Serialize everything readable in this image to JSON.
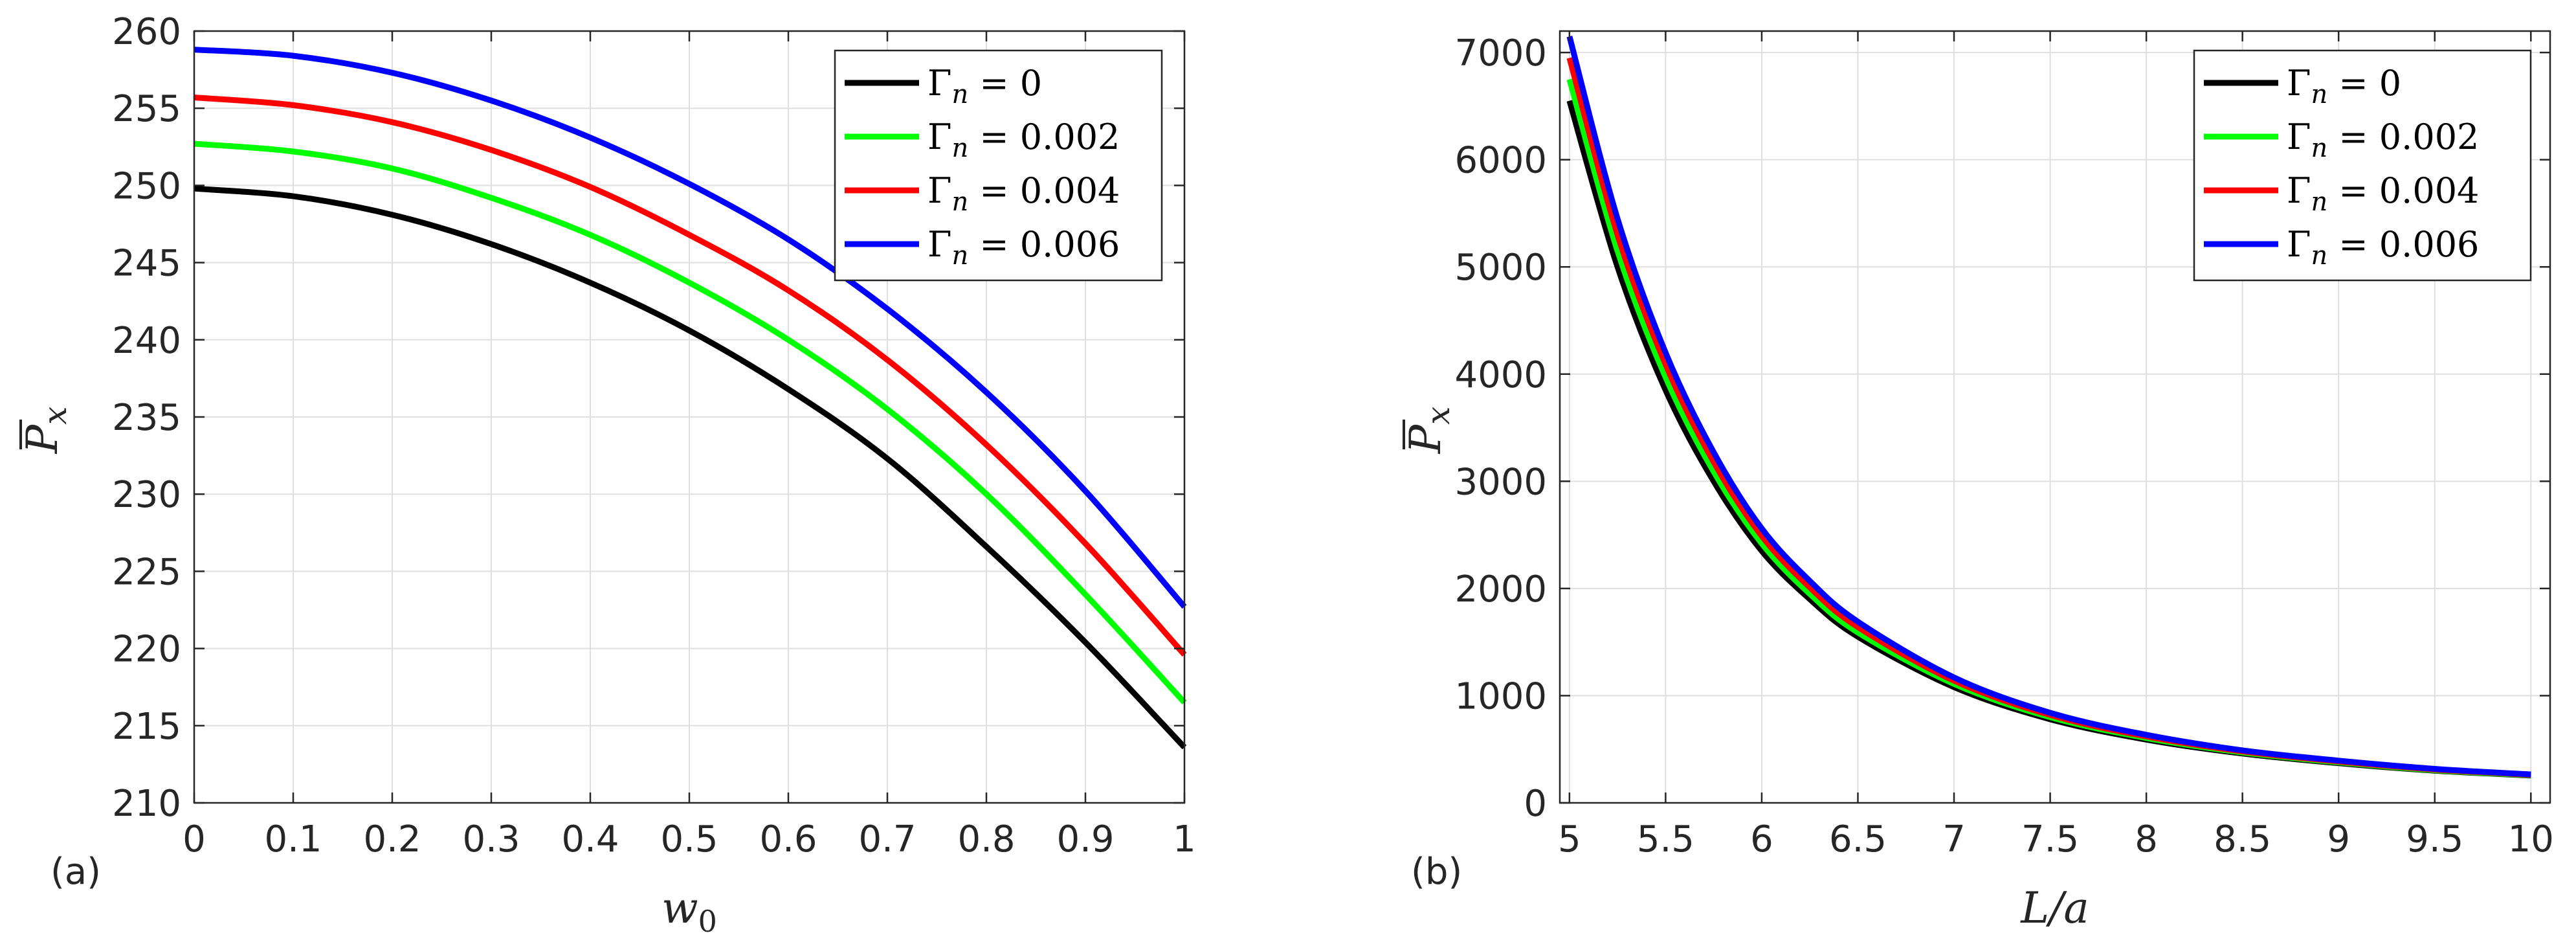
{
  "chart_data": [
    {
      "type": "line",
      "panel_label": "(a)",
      "xlabel": "w",
      "xlabel_sub": "0",
      "ylabel": "P",
      "ylabel_sub": "x",
      "xlim": [
        0,
        1
      ],
      "ylim": [
        210,
        260
      ],
      "xticks": [
        0,
        0.1,
        0.2,
        0.3,
        0.4,
        0.5,
        0.6,
        0.7,
        0.8,
        0.9,
        1
      ],
      "xtick_labels": [
        "0",
        "0.1",
        "0.2",
        "0.3",
        "0.4",
        "0.5",
        "0.6",
        "0.7",
        "0.8",
        "0.9",
        "1"
      ],
      "yticks": [
        210,
        215,
        220,
        225,
        230,
        235,
        240,
        245,
        250,
        255,
        260
      ],
      "ytick_labels": [
        "210",
        "215",
        "220",
        "225",
        "230",
        "235",
        "240",
        "245",
        "250",
        "255",
        "260"
      ],
      "grid": true,
      "legend_location": "top-right",
      "x": [
        0,
        0.1,
        0.2,
        0.3,
        0.4,
        0.5,
        0.6,
        0.7,
        0.8,
        0.9,
        1
      ],
      "series": [
        {
          "name": "Γ_n = 0",
          "legend_label": "Γ",
          "legend_sub": "n",
          "legend_value": " = 0",
          "color": "#000000",
          "values": [
            249.8,
            249.3,
            248.1,
            246.2,
            243.7,
            240.6,
            236.8,
            232.3,
            226.6,
            220.4,
            213.6
          ]
        },
        {
          "name": "Γ_n = 0.002",
          "legend_label": "Γ",
          "legend_sub": "n",
          "legend_value": " = 0.002",
          "color": "#00ff00",
          "values": [
            252.7,
            252.2,
            251.1,
            249.2,
            246.8,
            243.7,
            240.0,
            235.5,
            230.0,
            223.5,
            216.5
          ]
        },
        {
          "name": "Γ_n = 0.004",
          "legend_label": "Γ",
          "legend_sub": "n",
          "legend_value": " = 0.004",
          "color": "#ff0000",
          "values": [
            255.7,
            255.2,
            254.1,
            252.3,
            249.9,
            246.8,
            243.2,
            238.7,
            233.2,
            226.8,
            219.6
          ]
        },
        {
          "name": "Γ_n = 0.006",
          "legend_label": "Γ",
          "legend_sub": "n",
          "legend_value": " = 0.006",
          "color": "#0000ff",
          "values": [
            258.8,
            258.4,
            257.3,
            255.5,
            253.1,
            250.1,
            246.5,
            242.0,
            236.6,
            230.2,
            222.7
          ]
        }
      ]
    },
    {
      "type": "line",
      "panel_label": "(b)",
      "xlabel": "L/a",
      "xlabel_sub": "",
      "ylabel": "P",
      "ylabel_sub": "x",
      "xlim": [
        4.95,
        10.1
      ],
      "ylim": [
        0,
        7200
      ],
      "xticks": [
        5,
        5.5,
        6,
        6.5,
        7,
        7.5,
        8,
        8.5,
        9,
        9.5,
        10
      ],
      "xtick_labels": [
        "5",
        "5.5",
        "6",
        "6.5",
        "7",
        "7.5",
        "8",
        "8.5",
        "9",
        "9.5",
        "10"
      ],
      "yticks": [
        0,
        1000,
        2000,
        3000,
        4000,
        5000,
        6000,
        7000
      ],
      "ytick_labels": [
        "0",
        "1000",
        "2000",
        "3000",
        "4000",
        "5000",
        "6000",
        "7000"
      ],
      "grid": true,
      "legend_location": "top-right",
      "x": [
        5,
        5.25,
        5.5,
        5.75,
        6,
        6.25,
        6.5,
        7,
        7.5,
        8,
        8.5,
        9,
        9.5,
        10
      ],
      "series": [
        {
          "name": "Γ_n = 0",
          "legend_label": "Γ",
          "legend_sub": "n",
          "legend_value": " = 0",
          "color": "#000000",
          "values": [
            6550,
            5000,
            3850,
            3000,
            2350,
            1900,
            1550,
            1080,
            780,
            590,
            460,
            370,
            300,
            255
          ]
        },
        {
          "name": "Γ_n = 0.002",
          "legend_label": "Γ",
          "legend_sub": "n",
          "legend_value": " = 0.002",
          "color": "#00ff00",
          "values": [
            6750,
            5150,
            3970,
            3090,
            2420,
            1950,
            1590,
            1110,
            800,
            605,
            470,
            378,
            305,
            258
          ]
        },
        {
          "name": "Γ_n = 0.004",
          "legend_label": "Γ",
          "legend_sub": "n",
          "legend_value": " = 0.004",
          "color": "#ff0000",
          "values": [
            6950,
            5300,
            4090,
            3180,
            2490,
            2010,
            1640,
            1140,
            820,
            620,
            480,
            386,
            311,
            262
          ]
        },
        {
          "name": "Γ_n = 0.006",
          "legend_label": "Γ",
          "legend_sub": "n",
          "legend_value": " = 0.006",
          "color": "#0000ff",
          "values": [
            7150,
            5450,
            4200,
            3270,
            2560,
            2070,
            1690,
            1170,
            840,
            635,
            490,
            394,
            317,
            266
          ]
        }
      ]
    }
  ]
}
